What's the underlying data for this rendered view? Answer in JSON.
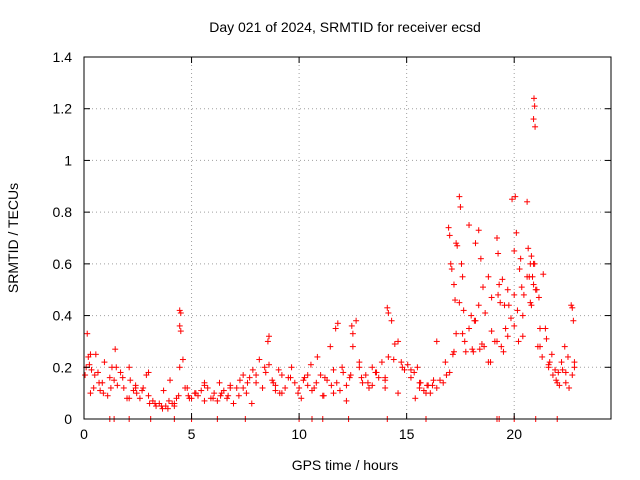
{
  "chart_data": {
    "type": "scatter",
    "title": "Day 021 of 2024, SRMTID for receiver ecsd",
    "xlabel": "GPS time / hours",
    "ylabel": "SRMTID / TECUs",
    "xlim": [
      0,
      24.5
    ],
    "ylim": [
      0,
      1.4
    ],
    "grid": true,
    "marker": "+",
    "series_color": "#ff0000",
    "xticks": [
      0,
      5,
      10,
      15,
      20
    ],
    "xtick_labels": [
      "0",
      "5",
      "10",
      "15",
      "20"
    ],
    "yticks": [
      0,
      0.2,
      0.4,
      0.6,
      0.8,
      1.0,
      1.2,
      1.4
    ],
    "ytick_labels": [
      "0",
      "0.2",
      "0.4",
      "0.6",
      "0.8",
      "1",
      "1.2",
      "1.4"
    ],
    "series": [
      {
        "name": "SRMTID",
        "x": [
          0.05,
          0.15,
          0.25,
          0.35,
          0.45,
          0.55,
          0.65,
          0.75,
          0.85,
          0.95,
          1.1,
          1.2,
          1.3,
          1.45,
          1.55,
          1.7,
          1.85,
          2.0,
          2.15,
          2.3,
          2.45,
          2.6,
          2.75,
          2.9,
          3.05,
          3.2,
          3.35,
          3.5,
          3.65,
          3.8,
          3.95,
          4.1,
          4.2,
          4.3,
          4.4,
          4.5,
          4.6,
          4.7,
          4.85,
          5.0,
          5.15,
          5.3,
          5.45,
          5.6,
          5.75,
          5.9,
          6.05,
          6.2,
          6.35,
          6.5,
          6.65,
          6.8,
          6.95,
          7.1,
          7.25,
          7.4,
          7.55,
          7.7,
          7.85,
          8.0,
          8.15,
          8.3,
          8.45,
          8.6,
          8.75,
          8.9,
          9.05,
          9.2,
          9.35,
          9.5,
          9.65,
          9.8,
          9.95,
          10.1,
          10.25,
          10.4,
          10.55,
          10.7,
          10.85,
          11.0,
          11.15,
          11.3,
          11.45,
          11.6,
          11.75,
          11.9,
          12.05,
          12.2,
          12.35,
          12.5,
          12.65,
          12.8,
          12.95,
          13.1,
          13.25,
          13.4,
          13.55,
          13.7,
          13.85,
          14.0,
          14.15,
          14.3,
          14.45,
          14.6,
          14.75,
          14.9,
          15.05,
          15.2,
          15.35,
          15.5,
          15.65,
          15.8,
          15.95,
          16.1,
          16.25,
          16.4,
          16.55,
          16.7,
          16.85,
          17.0,
          17.15,
          17.3,
          17.45,
          17.6,
          17.75,
          17.9,
          18.05,
          18.2,
          18.35,
          18.5,
          18.65,
          18.8,
          18.95,
          19.1,
          19.25,
          19.4,
          19.55,
          19.7,
          19.85,
          20.0,
          20.15,
          20.3,
          20.45,
          20.6,
          20.75,
          20.9,
          21.05,
          21.2,
          21.35,
          21.5,
          21.65,
          21.8,
          21.95,
          22.1,
          22.25,
          22.4,
          22.55,
          22.7,
          22.8,
          0.1,
          0.3,
          0.5,
          0.7,
          0.9,
          1.25,
          1.5,
          1.8,
          2.1,
          2.4,
          2.7,
          3.0,
          3.3,
          3.6,
          3.9,
          4.2,
          4.45,
          4.8,
          5.2,
          5.6,
          6.0,
          6.4,
          6.8,
          7.2,
          7.6,
          8.0,
          8.4,
          8.8,
          9.2,
          9.6,
          10.0,
          10.4,
          10.8,
          11.2,
          11.6,
          12.0,
          12.4,
          12.8,
          13.2,
          13.6,
          14.0,
          14.4,
          14.8,
          15.2,
          15.6,
          16.0,
          16.4,
          16.8,
          17.2,
          17.6,
          18.0,
          18.4,
          18.8,
          19.2,
          19.6,
          20.0,
          20.4,
          20.8,
          21.2,
          21.6,
          22.0,
          22.4,
          22.8,
          16.95,
          17.0,
          17.05,
          17.1,
          17.2,
          17.35,
          17.45,
          17.5,
          17.55,
          17.9,
          18.2,
          18.35,
          18.45,
          19.2,
          19.25,
          19.3,
          19.35,
          19.9,
          20.0,
          20.05,
          20.1,
          20.6,
          20.65,
          20.7,
          20.75,
          20.8,
          20.85,
          20.9,
          20.95,
          21.0,
          22.65,
          22.7,
          22.75,
          4.45,
          4.5,
          4.45,
          14.1,
          14.15,
          12.45,
          12.5,
          11.8,
          11.7,
          8.6,
          8.55,
          0.2,
          2.1,
          3.0,
          4.0,
          6.3,
          7.4,
          8.9,
          10.2,
          11.5,
          12.9,
          14.0,
          15.6,
          16.2,
          0.3,
          1.4,
          2.4,
          3.7,
          4.9,
          5.6,
          6.7,
          7.8,
          9.1,
          10.6,
          11.1,
          12.2,
          13.4,
          14.6,
          15.4,
          15.9,
          17.3,
          17.7,
          18.1,
          18.6,
          18.9,
          19.5,
          19.7,
          20.2,
          20.4,
          21.1,
          21.3,
          21.6,
          21.9,
          22.2,
          22.5,
          17.25,
          17.65,
          18.15,
          18.55,
          18.95,
          19.45,
          19.75,
          20.25,
          20.35,
          21.15,
          21.45,
          21.75,
          22.05,
          22.35
        ],
        "y": [
          0.17,
          0.33,
          0.21,
          0.19,
          0.12,
          0.25,
          0.18,
          0.11,
          0.14,
          0.22,
          0.09,
          0.16,
          0.2,
          0.27,
          0.13,
          0.18,
          0.12,
          0.08,
          0.15,
          0.11,
          0.1,
          0.08,
          0.12,
          0.17,
          0.06,
          0.07,
          0.05,
          0.06,
          0.04,
          0.05,
          0.07,
          0.06,
          0.05,
          0.08,
          0.09,
          0.34,
          0.23,
          0.12,
          0.09,
          0.08,
          0.1,
          0.09,
          0.11,
          0.14,
          0.12,
          0.08,
          0.1,
          0.07,
          0.09,
          0.11,
          0.08,
          0.13,
          0.06,
          0.12,
          0.15,
          0.17,
          0.1,
          0.16,
          0.19,
          0.14,
          0.23,
          0.12,
          0.18,
          0.21,
          0.15,
          0.11,
          0.19,
          0.17,
          0.12,
          0.16,
          0.2,
          0.14,
          0.1,
          0.08,
          0.16,
          0.13,
          0.21,
          0.12,
          0.24,
          0.17,
          0.09,
          0.15,
          0.28,
          0.19,
          0.14,
          0.11,
          0.18,
          0.13,
          0.16,
          0.28,
          0.38,
          0.2,
          0.14,
          0.17,
          0.12,
          0.2,
          0.18,
          0.16,
          0.22,
          0.15,
          0.24,
          0.38,
          0.29,
          0.3,
          0.22,
          0.19,
          0.21,
          0.16,
          0.18,
          0.2,
          0.14,
          0.11,
          0.13,
          0.1,
          0.15,
          0.12,
          0.15,
          0.14,
          0.17,
          0.18,
          0.25,
          0.68,
          0.45,
          0.55,
          0.26,
          0.35,
          0.27,
          0.38,
          0.44,
          0.29,
          0.41,
          0.55,
          0.34,
          0.3,
          0.48,
          0.28,
          0.44,
          0.5,
          0.39,
          0.36,
          0.42,
          0.62,
          0.48,
          0.55,
          0.45,
          0.6,
          0.5,
          0.35,
          0.56,
          0.31,
          0.22,
          0.17,
          0.15,
          0.13,
          0.19,
          0.14,
          0.12,
          0.17,
          0.2,
          0.2,
          0.25,
          0.17,
          0.14,
          0.1,
          0.12,
          0.2,
          0.16,
          0.08,
          0.13,
          0.11,
          0.09,
          0.06,
          0.05,
          0.04,
          0.06,
          0.2,
          0.12,
          0.1,
          0.13,
          0.08,
          0.1,
          0.12,
          0.09,
          0.14,
          0.17,
          0.2,
          0.14,
          0.1,
          0.16,
          0.12,
          0.17,
          0.14,
          0.16,
          0.1,
          0.2,
          0.17,
          0.22,
          0.14,
          0.18,
          0.16,
          0.23,
          0.2,
          0.19,
          0.12,
          0.13,
          0.3,
          0.22,
          0.26,
          0.33,
          0.4,
          0.27,
          0.22,
          0.3,
          0.35,
          0.48,
          0.32,
          0.44,
          0.28,
          0.2,
          0.14,
          0.18,
          0.22,
          0.74,
          0.71,
          0.6,
          0.58,
          0.52,
          0.67,
          0.86,
          0.82,
          0.6,
          0.75,
          0.68,
          0.73,
          0.62,
          0.7,
          0.64,
          0.52,
          0.45,
          0.85,
          0.65,
          0.86,
          0.72,
          0.84,
          0.66,
          0.55,
          0.6,
          0.63,
          0.55,
          0.52,
          0.6,
          0.5,
          0.44,
          0.43,
          0.38,
          0.42,
          0.41,
          0.36,
          0.43,
          0.41,
          0.36,
          0.33,
          0.37,
          0.35,
          0.32,
          0.3,
          0.24,
          0.2,
          0.18,
          0.15,
          0.14,
          0.12,
          0.13,
          0.15,
          0.13,
          0.16,
          0.12,
          0.14,
          0.13,
          0.1,
          0.15,
          0.12,
          0.11,
          0.08,
          0.07,
          0.09,
          0.06,
          0.1,
          0.11,
          0.09,
          0.07,
          0.13,
          0.1,
          0.08,
          0.1,
          0.33,
          0.3,
          0.26,
          0.28,
          0.22,
          0.26,
          0.32,
          0.3,
          0.4,
          0.28,
          0.24,
          0.21,
          0.19,
          0.22,
          0.24,
          0.46,
          0.42,
          0.38,
          0.51,
          0.47,
          0.54,
          0.44,
          0.58,
          0.51,
          0.47,
          0.35,
          0.25,
          0.18,
          0.28
        ]
      }
    ],
    "outliers": {
      "x": [
        20.92,
        20.95,
        20.9,
        20.97
      ],
      "y": [
        1.24,
        1.21,
        1.16,
        1.13
      ]
    },
    "baseline_markers_x": [
      1.2,
      1.4,
      2.1,
      3.1,
      4.2,
      5.0,
      6.2,
      7.5,
      10.0,
      10.6,
      11.1,
      12.3,
      14.1,
      15.9,
      19.2,
      19.3,
      20.0,
      21.0,
      22.0
    ]
  }
}
